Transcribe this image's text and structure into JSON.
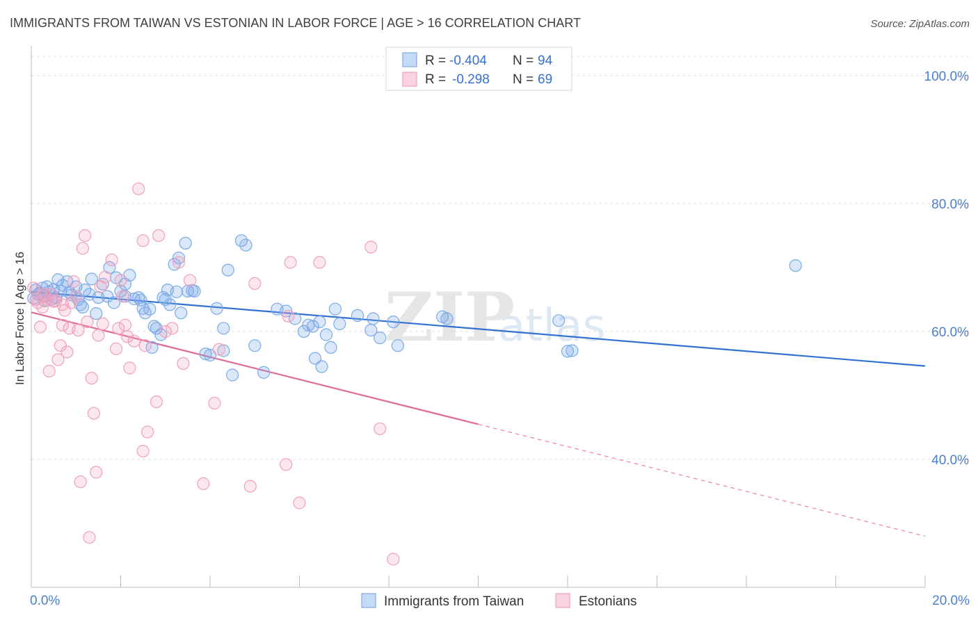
{
  "page": {
    "title": "IMMIGRANTS FROM TAIWAN VS ESTONIAN IN LABOR FORCE | AGE > 16 CORRELATION CHART",
    "source": "Source: ZipAtlas.com",
    "watermark": {
      "zip": "ZIP",
      "atlas": "atlas"
    }
  },
  "legend": {
    "rows": [
      {
        "r_label": "R =",
        "r_value": "-0.404",
        "n_label": "N =",
        "n_value": "94",
        "color": "#7aaae8"
      },
      {
        "r_label": "R =",
        "r_value": "-0.298",
        "n_label": "N =",
        "n_value": "69",
        "color": "#f0a0bc"
      }
    ]
  },
  "bottom_legend": {
    "items": [
      {
        "label": "Immigrants from Taiwan",
        "color": "#7aaae8"
      },
      {
        "label": "Estonians",
        "color": "#f0a0bc"
      }
    ]
  },
  "chart_data": {
    "type": "scatter",
    "title": "IMMIGRANTS FROM TAIWAN VS ESTONIAN IN LABOR FORCE | AGE > 16 CORRELATION CHART",
    "xlabel": "",
    "ylabel": "In Labor Force | Age > 16",
    "xlim": [
      0,
      20
    ],
    "ylim": [
      20,
      104
    ],
    "x_tick_labels": [
      "0.0%",
      "20.0%"
    ],
    "y_ticks": [
      40,
      60,
      80,
      100
    ],
    "y_tick_labels": [
      "40.0%",
      "60.0%",
      "80.0%",
      "100.0%"
    ],
    "grid": true,
    "legend_position": "top-center",
    "series": [
      {
        "name": "Immigrants from Taiwan",
        "color": "#7aaae8",
        "line_color": "#3070d0",
        "trend": {
          "x": [
            0,
            20
          ],
          "y": [
            66.2,
            54.6
          ],
          "solid_until": 20
        },
        "points": [
          [
            0.1,
            66.5
          ],
          [
            0.15,
            65.8
          ],
          [
            0.2,
            66.0
          ],
          [
            0.25,
            66.8
          ],
          [
            0.3,
            65.5
          ],
          [
            0.35,
            67.0
          ],
          [
            0.4,
            66.2
          ],
          [
            0.45,
            65.0
          ],
          [
            0.5,
            66.6
          ],
          [
            0.6,
            68.1
          ],
          [
            0.65,
            66.3
          ],
          [
            0.7,
            67.2
          ],
          [
            0.8,
            67.8
          ],
          [
            0.85,
            66.1
          ],
          [
            0.9,
            65.7
          ],
          [
            1.0,
            67.0
          ],
          [
            1.05,
            65.0
          ],
          [
            1.1,
            64.2
          ],
          [
            1.2,
            66.5
          ],
          [
            1.3,
            65.8
          ],
          [
            1.35,
            68.2
          ],
          [
            1.45,
            62.8
          ],
          [
            1.5,
            65.3
          ],
          [
            1.6,
            67.4
          ],
          [
            1.7,
            65.5
          ],
          [
            1.75,
            70.0
          ],
          [
            1.85,
            64.5
          ],
          [
            1.9,
            68.4
          ],
          [
            2.0,
            66.3
          ],
          [
            2.1,
            67.4
          ],
          [
            2.1,
            65.5
          ],
          [
            2.2,
            68.8
          ],
          [
            2.3,
            65.1
          ],
          [
            2.4,
            65.3
          ],
          [
            2.5,
            63.6
          ],
          [
            2.55,
            62.9
          ],
          [
            2.65,
            63.5
          ],
          [
            2.7,
            57.5
          ],
          [
            2.75,
            60.8
          ],
          [
            2.8,
            60.5
          ],
          [
            2.9,
            59.5
          ],
          [
            2.95,
            65.3
          ],
          [
            3.0,
            65.0
          ],
          [
            3.05,
            66.5
          ],
          [
            3.1,
            64.2
          ],
          [
            3.2,
            70.5
          ],
          [
            3.3,
            71.5
          ],
          [
            3.35,
            62.9
          ],
          [
            3.45,
            73.8
          ],
          [
            3.5,
            66.3
          ],
          [
            3.6,
            66.4
          ],
          [
            3.65,
            66.3
          ],
          [
            3.9,
            56.5
          ],
          [
            4.0,
            56.3
          ],
          [
            4.3,
            57.0
          ],
          [
            4.3,
            60.5
          ],
          [
            4.4,
            69.6
          ],
          [
            4.5,
            53.2
          ],
          [
            4.7,
            74.2
          ],
          [
            4.8,
            73.5
          ],
          [
            5.0,
            57.8
          ],
          [
            5.2,
            53.6
          ],
          [
            5.5,
            63.5
          ],
          [
            5.9,
            62.0
          ],
          [
            6.1,
            60.0
          ],
          [
            6.3,
            60.8
          ],
          [
            6.35,
            55.8
          ],
          [
            6.45,
            61.5
          ],
          [
            6.5,
            54.5
          ],
          [
            6.6,
            59.5
          ],
          [
            6.7,
            57.5
          ],
          [
            6.8,
            63.5
          ],
          [
            6.9,
            61.2
          ],
          [
            7.6,
            60.2
          ],
          [
            7.65,
            62.0
          ],
          [
            7.8,
            59.0
          ],
          [
            8.1,
            61.5
          ],
          [
            8.2,
            57.8
          ],
          [
            9.2,
            62.3
          ],
          [
            9.3,
            62.0
          ],
          [
            11.8,
            61.7
          ],
          [
            12.0,
            56.9
          ],
          [
            12.1,
            57.0
          ],
          [
            17.1,
            70.3
          ],
          [
            0.3,
            64.8
          ],
          [
            0.55,
            65.3
          ],
          [
            1.15,
            63.8
          ],
          [
            2.45,
            64.9
          ],
          [
            3.25,
            66.2
          ],
          [
            4.15,
            63.6
          ],
          [
            5.7,
            63.2
          ],
          [
            6.2,
            61.0
          ],
          [
            7.3,
            62.5
          ],
          [
            0.05,
            65.2
          ]
        ]
      },
      {
        "name": "Estonians",
        "color": "#f0a0bc",
        "line_color": "#e06a96",
        "trend": {
          "x": [
            0,
            20
          ],
          "y": [
            63.0,
            28.0
          ],
          "solid_until": 10
        },
        "points": [
          [
            0.05,
            66.8
          ],
          [
            0.1,
            65.0
          ],
          [
            0.15,
            64.5
          ],
          [
            0.2,
            60.7
          ],
          [
            0.25,
            65.5
          ],
          [
            0.3,
            65.8
          ],
          [
            0.35,
            64.9
          ],
          [
            0.4,
            53.8
          ],
          [
            0.5,
            64.7
          ],
          [
            0.55,
            64.8
          ],
          [
            0.6,
            55.6
          ],
          [
            0.65,
            57.8
          ],
          [
            0.7,
            61.0
          ],
          [
            0.75,
            63.3
          ],
          [
            0.8,
            56.8
          ],
          [
            0.85,
            60.5
          ],
          [
            0.9,
            64.5
          ],
          [
            1.0,
            65.5
          ],
          [
            1.05,
            60.2
          ],
          [
            1.1,
            36.5
          ],
          [
            1.15,
            73.0
          ],
          [
            1.2,
            75.0
          ],
          [
            1.25,
            61.5
          ],
          [
            1.3,
            27.8
          ],
          [
            1.35,
            52.7
          ],
          [
            1.4,
            47.2
          ],
          [
            1.45,
            38.0
          ],
          [
            1.5,
            59.4
          ],
          [
            1.55,
            67.0
          ],
          [
            1.6,
            61.2
          ],
          [
            1.8,
            71.2
          ],
          [
            1.9,
            57.3
          ],
          [
            1.95,
            60.5
          ],
          [
            2.0,
            68.0
          ],
          [
            2.05,
            65.5
          ],
          [
            2.1,
            61.0
          ],
          [
            2.15,
            59.2
          ],
          [
            2.2,
            54.3
          ],
          [
            2.4,
            82.3
          ],
          [
            2.5,
            74.2
          ],
          [
            2.55,
            57.8
          ],
          [
            2.6,
            44.3
          ],
          [
            2.5,
            41.3
          ],
          [
            2.8,
            49.0
          ],
          [
            2.85,
            75.0
          ],
          [
            3.0,
            60.0
          ],
          [
            3.3,
            70.8
          ],
          [
            3.4,
            55.0
          ],
          [
            3.55,
            68.0
          ],
          [
            3.85,
            36.2
          ],
          [
            4.1,
            48.8
          ],
          [
            4.2,
            57.2
          ],
          [
            4.9,
            35.8
          ],
          [
            5.0,
            67.5
          ],
          [
            5.7,
            39.2
          ],
          [
            5.75,
            62.4
          ],
          [
            5.8,
            70.8
          ],
          [
            6.0,
            33.2
          ],
          [
            6.45,
            70.8
          ],
          [
            7.6,
            73.2
          ],
          [
            7.8,
            44.8
          ],
          [
            8.1,
            24.4
          ],
          [
            0.45,
            65.8
          ],
          [
            0.95,
            67.8
          ],
          [
            1.65,
            68.5
          ],
          [
            0.25,
            63.8
          ],
          [
            3.15,
            60.5
          ],
          [
            0.7,
            64.2
          ],
          [
            2.3,
            58.5
          ]
        ]
      }
    ]
  }
}
